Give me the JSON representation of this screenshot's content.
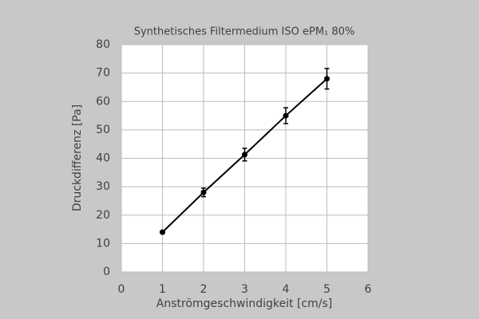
{
  "chart_data": {
    "type": "line",
    "title": "Synthetisches Filtermedium ISO ePM₁ 80%",
    "x_label": "Anströmgeschwindigkeit [cm/s]",
    "y_label": "Druckdifferenz [Pa]",
    "series": [
      {
        "color": "#000000",
        "x": [
          1,
          2,
          3,
          4,
          5
        ],
        "values": [
          14,
          28,
          41.3,
          55,
          68
        ],
        "errors": [
          0.5,
          1.5,
          2.2,
          2.8,
          3.6
        ]
      }
    ],
    "xlim": [
      0,
      6
    ],
    "xticks": [
      0,
      1,
      2,
      3,
      4,
      5,
      6
    ],
    "ylim": [
      0,
      80
    ],
    "yticks": [
      0,
      10,
      20,
      30,
      40,
      50,
      60,
      70,
      80
    ],
    "grid": true
  }
}
